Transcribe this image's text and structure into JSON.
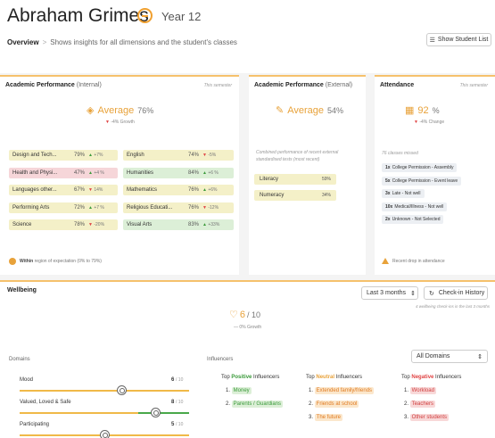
{
  "student": {
    "name": "Abraham Grimes",
    "year": "Year 12"
  },
  "breadcrumb": {
    "current": "Overview",
    "separator": ">",
    "description": "Shows insights for all dimensions and the student's classes"
  },
  "show_student_list": "Show Student List",
  "academic_internal": {
    "title": "Academic Performance",
    "qualifier": "(Internal)",
    "meta": "This semester",
    "metric_label": "Average",
    "metric_value": "76%",
    "growth": "-4% Growth",
    "subjects": [
      {
        "name": "Design and Tech...",
        "pct": "79%",
        "change": "+7%",
        "trend": "up",
        "color": "yellow"
      },
      {
        "name": "English",
        "pct": "74%",
        "change": "-5%",
        "trend": "down",
        "color": "yellow"
      },
      {
        "name": "Health and Physi...",
        "pct": "47%",
        "change": "+4 %",
        "trend": "up",
        "color": "red"
      },
      {
        "name": "Humanities",
        "pct": "84%",
        "change": "+6 %",
        "trend": "up",
        "color": "green"
      },
      {
        "name": "Languages other...",
        "pct": "67%",
        "change": "14%",
        "trend": "down",
        "color": "yellow"
      },
      {
        "name": "Mathematics",
        "pct": "76%",
        "change": "+6%",
        "trend": "up",
        "color": "yellow"
      },
      {
        "name": "Performing Arts",
        "pct": "72%",
        "change": "+7 %",
        "trend": "up",
        "color": "yellow"
      },
      {
        "name": "Religious Educati...",
        "pct": "76%",
        "change": "-12%",
        "trend": "down",
        "color": "yellow"
      },
      {
        "name": "Science",
        "pct": "78%",
        "change": "-20%",
        "trend": "down",
        "color": "yellow"
      },
      {
        "name": "Visual Arts",
        "pct": "83%",
        "change": "+33%",
        "trend": "up",
        "color": "green"
      }
    ],
    "footer_bold": "Within",
    "footer_text": "region of expectation (0% to 79%)"
  },
  "academic_external": {
    "title": "Academic Performance",
    "qualifier": "(External)",
    "metric_label": "Average",
    "metric_value": "54%",
    "note_line1": "Combined performance of recent external",
    "note_line2": "standardised tests (most recent)",
    "rows": [
      {
        "name": "Literacy",
        "pct": "59%"
      },
      {
        "name": "Numeracy",
        "pct": "34%"
      }
    ]
  },
  "attendance": {
    "title": "Attendance",
    "meta": "This semester",
    "metric_value": "92",
    "metric_unit": "%",
    "change": "-4% Change",
    "note": "76 classes missed",
    "reasons": [
      {
        "count": "1x",
        "label": "College Permission - Assembly"
      },
      {
        "count": "5x",
        "label": "College Permission - Event leave"
      },
      {
        "count": "3x",
        "label": "Late - Not well"
      },
      {
        "count": "10x",
        "label": "Medical/Illness - Not well"
      },
      {
        "count": "2x",
        "label": "Unknown - Not Selected"
      }
    ],
    "footer": "Recent drop in attendance"
  },
  "wellbeing": {
    "title": "Wellbeing",
    "period_select": "Last 3 months",
    "checkin_button": "Check-in History",
    "note": "4 wellbeing check-ins in the last 3 months",
    "score": "6",
    "score_of": "/ 10",
    "growth": "— 0% Growth",
    "domains_label": "Domains",
    "domains": [
      {
        "name": "Mood",
        "score": "6",
        "of": "/ 10",
        "value": 0.6
      },
      {
        "name": "Valued, Loved & Safe",
        "score": "8",
        "of": "/ 10",
        "value": 0.8
      },
      {
        "name": "Participating",
        "score": "5",
        "of": "/ 10",
        "value": 0.5
      }
    ],
    "influencers_label": "Influencers",
    "domain_filter": "All Domains",
    "positive": {
      "prefix": "Top",
      "word": "Positive",
      "suffix": "Influencers",
      "items": [
        "Money",
        "Parents / Guardians"
      ]
    },
    "neutral": {
      "prefix": "Top",
      "word": "Neutral",
      "suffix": "Influencers",
      "items": [
        "Extended family/friends",
        "Friends at school",
        "The future"
      ]
    },
    "negative": {
      "prefix": "Top",
      "word": "Negative",
      "suffix": "Influencers",
      "items": [
        "Workload",
        "Teachers",
        "Other students"
      ]
    }
  }
}
